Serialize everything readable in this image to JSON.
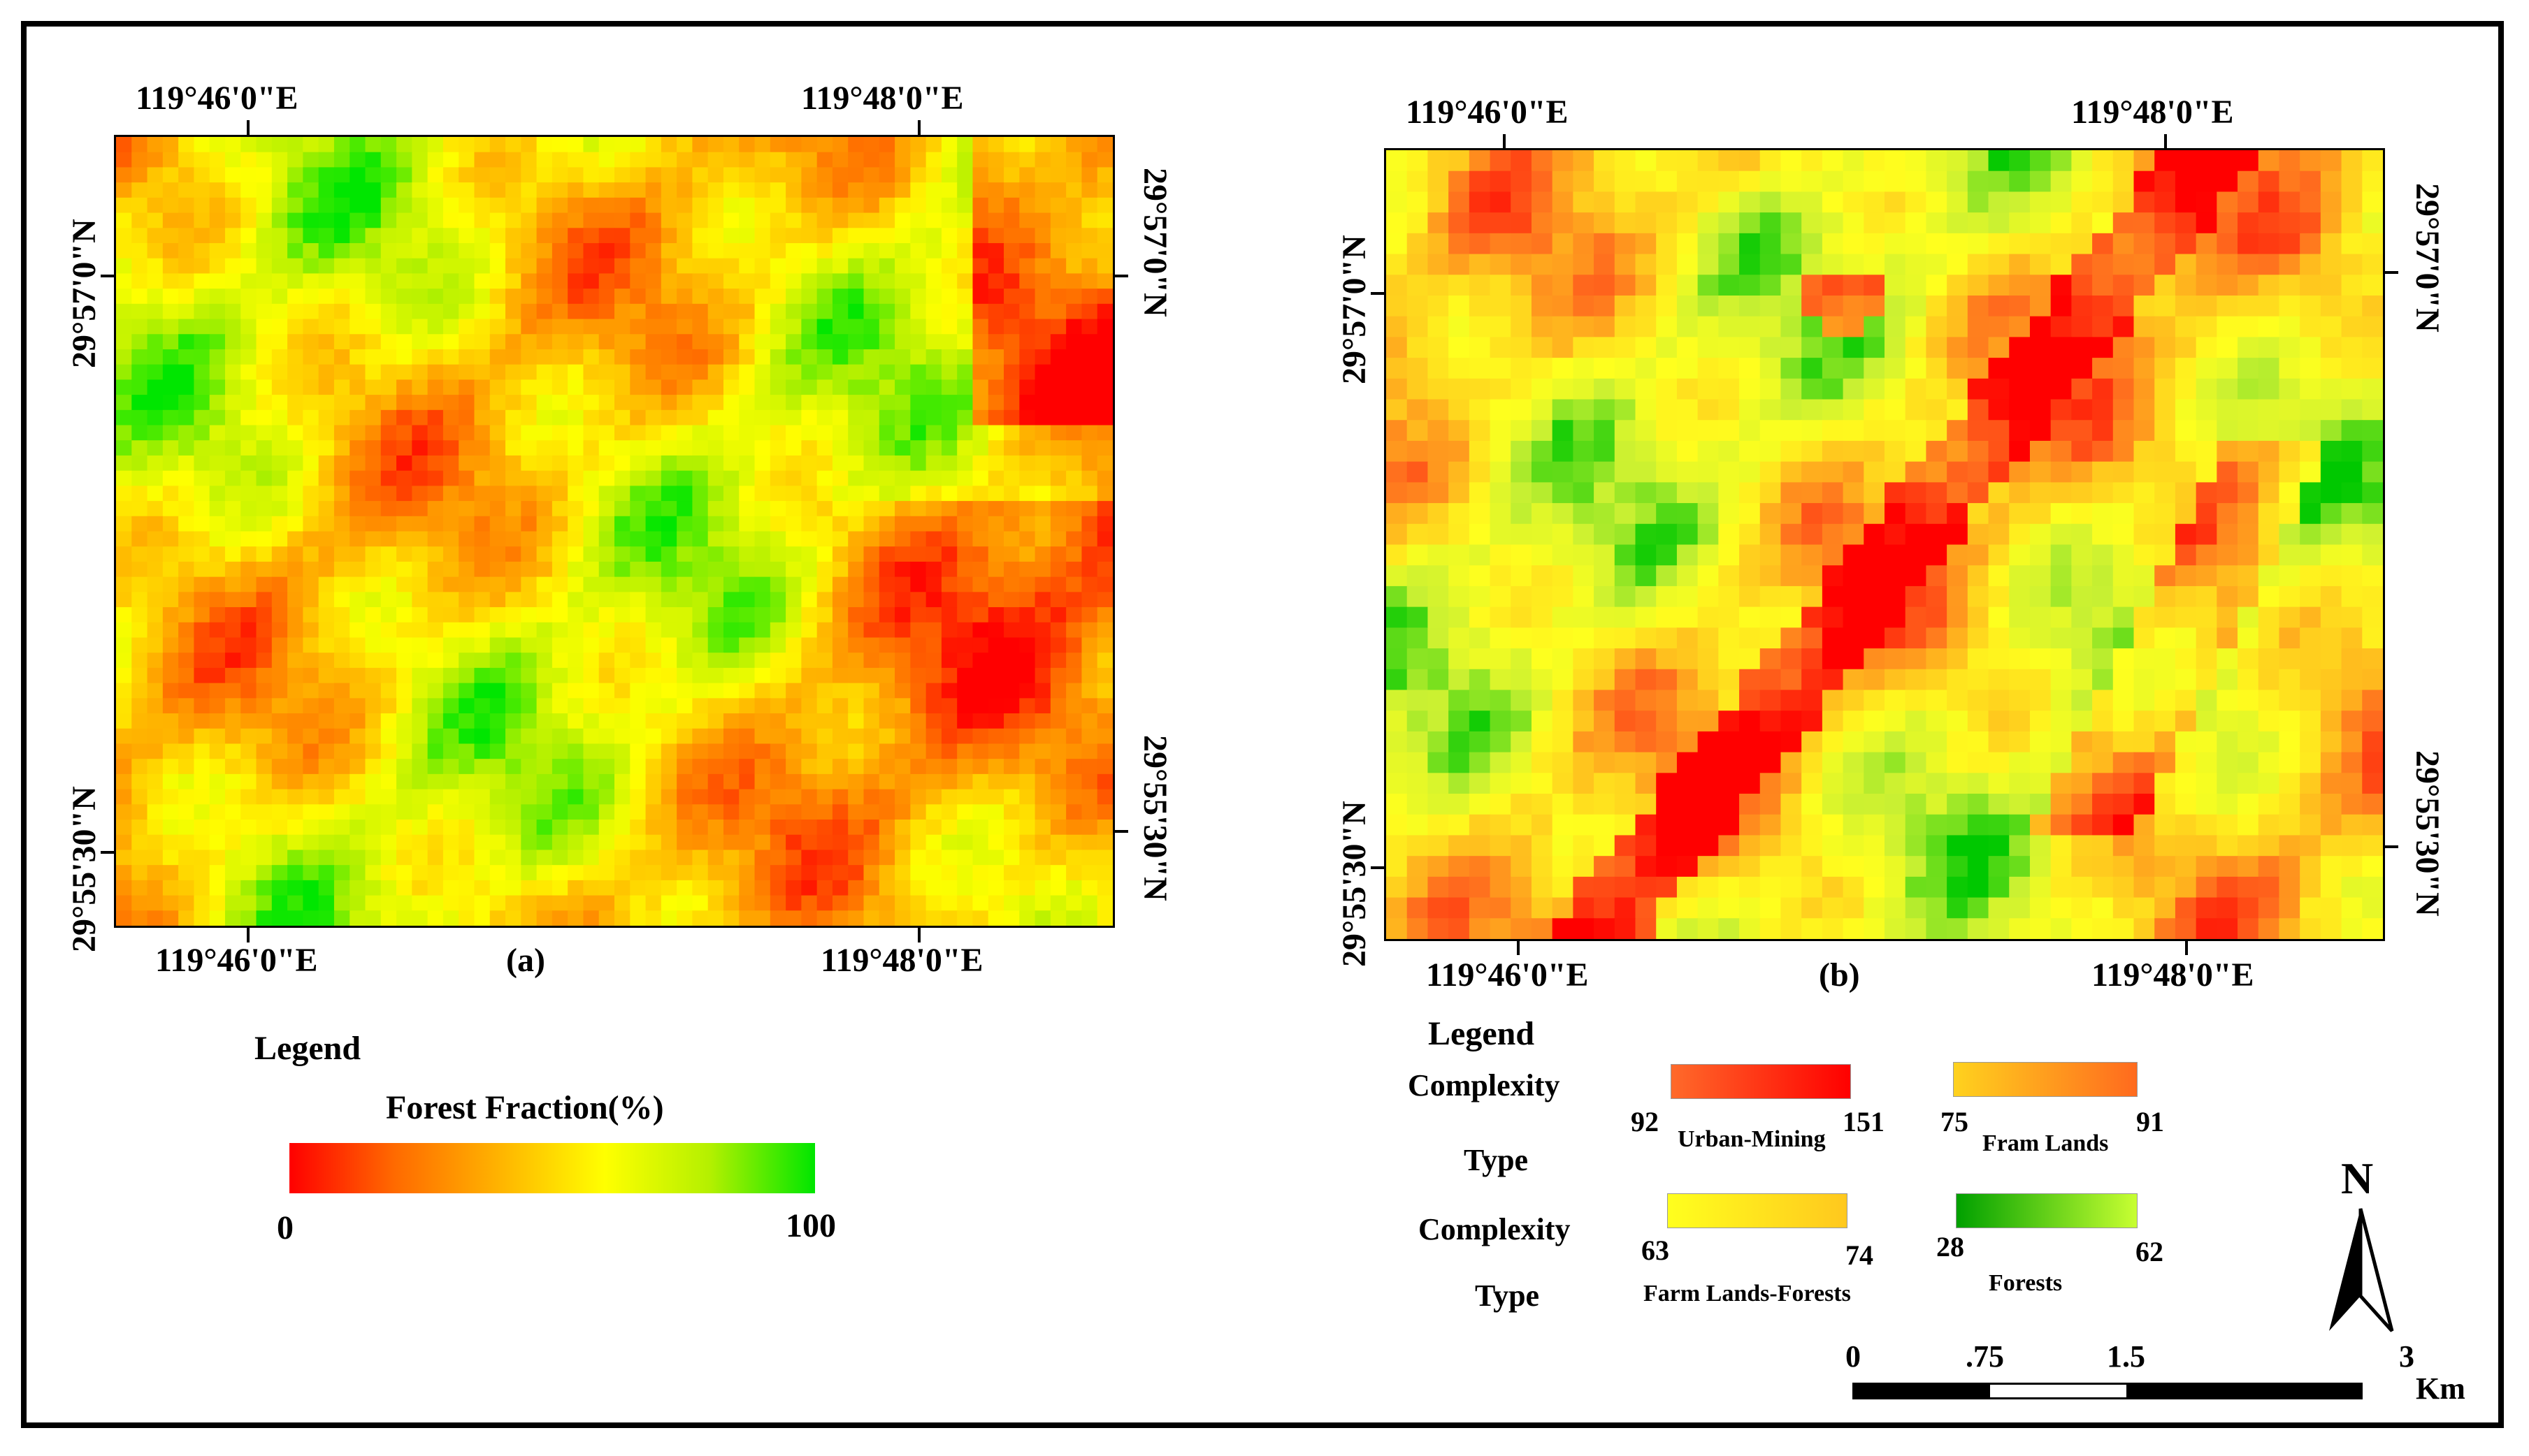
{
  "panel_a": {
    "label": "(a)",
    "lon_top": [
      "119°46'0\"E",
      "119°48'0\"E"
    ],
    "lon_bottom": [
      "119°46'0\"E",
      "119°48'0\"E"
    ],
    "lat_left": [
      "29°57'0\"N",
      "29°55'30\"N"
    ],
    "lat_right": [
      "29°57'0\"N",
      "29°55'30\"N"
    ],
    "legend_title": "Legend",
    "legend_subtitle": "Forest Fraction(%)",
    "legend_min": "0",
    "legend_max": "100",
    "ramp_colors": [
      "#ff0000",
      "#ff6a00",
      "#ffb400",
      "#ffff00",
      "#b4f000",
      "#00e600"
    ]
  },
  "panel_b": {
    "label": "(b)",
    "lon_top": [
      "119°46'0\"E",
      "119°48'0\"E"
    ],
    "lon_bottom": [
      "119°46'0\"E",
      "119°48'0\"E"
    ],
    "lat_left": [
      "29°57'0\"N",
      "29°55'30\"N"
    ],
    "lat_right": [
      "29°57'0\"N",
      "29°55'30\"N"
    ],
    "legend_title": "Legend",
    "row_headers": [
      "Complexity",
      "Type",
      "Complexity",
      "Type"
    ],
    "classes": [
      {
        "name": "Urban-Mining",
        "min": "92",
        "max": "151",
        "colors": [
          "#ff6a2a",
          "#ff0000"
        ]
      },
      {
        "name": "Fram Lands",
        "min": "75",
        "max": "91",
        "colors": [
          "#ffd21e",
          "#ff6a1e"
        ]
      },
      {
        "name": "Farm Lands-Forests",
        "min": "63",
        "max": "74",
        "colors": [
          "#ffff1e",
          "#ffc81e"
        ]
      },
      {
        "name": "Forests",
        "min": "28",
        "max": "62",
        "colors": [
          "#00a000",
          "#c8ff32"
        ]
      }
    ],
    "north_label": "N",
    "scale_ticks": [
      "0",
      ".75",
      "1.5",
      "3"
    ],
    "scale_unit": "Km"
  }
}
